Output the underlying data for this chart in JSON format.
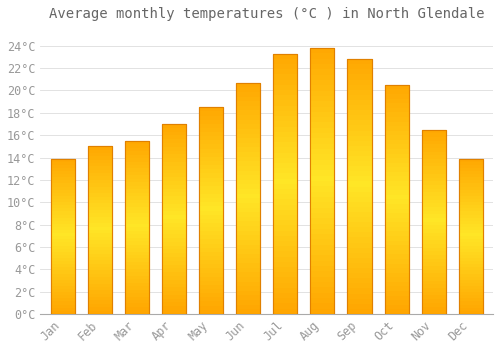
{
  "title": "Average monthly temperatures (°C ) in North Glendale",
  "months": [
    "Jan",
    "Feb",
    "Mar",
    "Apr",
    "May",
    "Jun",
    "Jul",
    "Aug",
    "Sep",
    "Oct",
    "Nov",
    "Dec"
  ],
  "values": [
    13.9,
    15.0,
    15.5,
    17.0,
    18.5,
    20.7,
    23.3,
    23.8,
    22.8,
    20.5,
    16.5,
    13.9
  ],
  "bar_color": "#FFA500",
  "bar_light_color": "#FFD050",
  "bar_edge_color": "#E08000",
  "background_color": "#FFFFFF",
  "plot_bg_color": "#FFFFFF",
  "grid_color": "#DDDDDD",
  "text_color": "#999999",
  "title_color": "#666666",
  "ylim": [
    0,
    25.5
  ],
  "yticks": [
    0,
    2,
    4,
    6,
    8,
    10,
    12,
    14,
    16,
    18,
    20,
    22,
    24
  ],
  "title_fontsize": 10,
  "tick_fontsize": 8.5,
  "bar_width": 0.65
}
